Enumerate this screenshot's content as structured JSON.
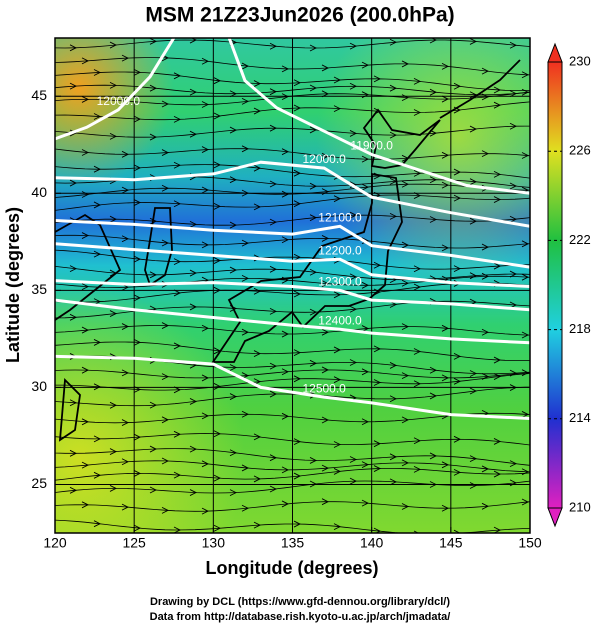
{
  "chart_data": {
    "type": "map",
    "title": "MSM 21Z23Jun2026 (200.0hPa)",
    "xlabel": "Longitude (degrees)",
    "ylabel": "Latitude  (degrees)",
    "xlim": [
      120,
      150
    ],
    "xticks": [
      120,
      125,
      130,
      135,
      140,
      145,
      150
    ],
    "ylim": [
      22.5,
      48
    ],
    "yticks": [
      25,
      30,
      35,
      40,
      45
    ],
    "grid": true,
    "colorbar": {
      "lim": [
        210,
        230
      ],
      "ticks": [
        210,
        214,
        218,
        222,
        226,
        230
      ],
      "colors": [
        "#e020c0",
        "#2030d0",
        "#20d0e0",
        "#20c040",
        "#e0e020",
        "#f03020"
      ]
    },
    "contours": [
      {
        "label": "12000.0",
        "lon": [
          120,
          122,
          124,
          126,
          127.5
        ],
        "lat": [
          42.8,
          43.4,
          44.3,
          46.0,
          48
        ]
      },
      {
        "label": "11900.0",
        "lon": [
          131,
          132,
          134,
          137,
          140,
          143,
          146,
          150
        ],
        "lat": [
          48,
          45.8,
          44.4,
          43.2,
          42,
          41.2,
          40.4,
          40
        ]
      },
      {
        "label": "12000.0",
        "lon": [
          120,
          125,
          130,
          133,
          137,
          140,
          145,
          150
        ],
        "lat": [
          40.8,
          40.7,
          41,
          41.6,
          41.3,
          39.8,
          39,
          38.3
        ]
      },
      {
        "label": "12100.0",
        "lon": [
          120,
          125,
          130,
          135,
          138,
          140,
          145,
          150
        ],
        "lat": [
          38.6,
          38.4,
          38.1,
          37.9,
          38.3,
          37.3,
          36.8,
          36.2
        ]
      },
      {
        "label": "12200.0",
        "lon": [
          120,
          125,
          130,
          135,
          138,
          140,
          145,
          150
        ],
        "lat": [
          37.4,
          37.1,
          36.8,
          36.5,
          36.6,
          35.8,
          35.4,
          35.2
        ]
      },
      {
        "label": "12300.0",
        "lon": [
          120,
          125,
          130,
          135,
          138,
          140,
          145,
          150
        ],
        "lat": [
          35.5,
          35.3,
          35.4,
          35.2,
          35.0,
          34.5,
          34.3,
          34.0
        ]
      },
      {
        "label": "12400.0",
        "lon": [
          120,
          125,
          130,
          135,
          138,
          140,
          145,
          150
        ],
        "lat": [
          34.5,
          34.0,
          33.6,
          33.2,
          33.0,
          32.8,
          32.5,
          32.3
        ]
      },
      {
        "label": "12500.0",
        "lon": [
          120,
          125,
          130,
          133,
          137,
          140,
          145,
          150
        ],
        "lat": [
          31.6,
          31.5,
          31.2,
          30.0,
          29.5,
          29.2,
          28.6,
          28.4
        ]
      }
    ]
  },
  "footer": {
    "line1": "Drawing by DCL (https://www.gfd-dennou.org/library/dcl/)",
    "line2": "Data from http://database.rish.kyoto-u.ac.jp/arch/jmadata/"
  }
}
